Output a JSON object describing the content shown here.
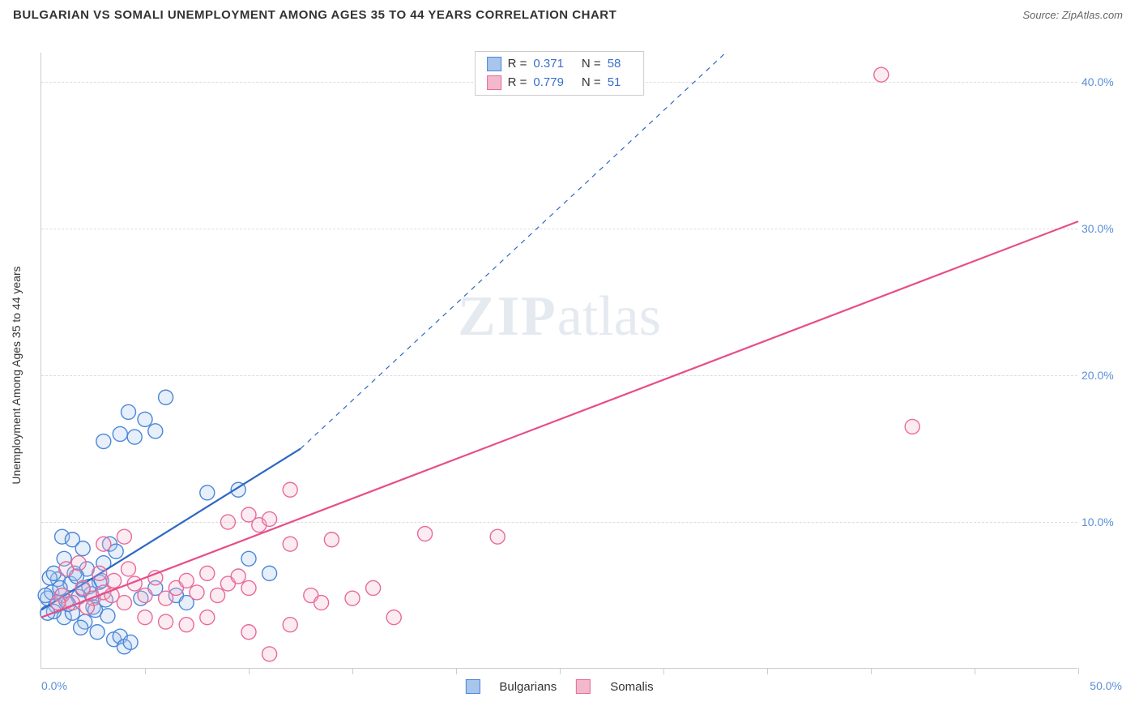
{
  "header": {
    "title": "BULGARIAN VS SOMALI UNEMPLOYMENT AMONG AGES 35 TO 44 YEARS CORRELATION CHART",
    "source": "Source: ZipAtlas.com"
  },
  "chart": {
    "type": "scatter",
    "y_axis_label": "Unemployment Among Ages 35 to 44 years",
    "watermark_prefix": "ZIP",
    "watermark_suffix": "atlas",
    "xlim": [
      0,
      50
    ],
    "ylim": [
      0,
      42
    ],
    "x_tick_labels": {
      "min": "0.0%",
      "max": "50.0%"
    },
    "y_ticks": [
      {
        "value": 10,
        "label": "10.0%"
      },
      {
        "value": 20,
        "label": "20.0%"
      },
      {
        "value": 30,
        "label": "30.0%"
      },
      {
        "value": 40,
        "label": "40.0%"
      }
    ],
    "x_tick_positions": [
      5,
      10,
      15,
      20,
      25,
      30,
      35,
      40,
      45,
      50
    ],
    "grid_color": "#dddddd",
    "background_color": "#ffffff",
    "marker_radius": 9,
    "marker_stroke_width": 1.4,
    "marker_fill_opacity": 0.28,
    "series": [
      {
        "name": "Bulgarians",
        "color_stroke": "#4a87d8",
        "color_fill": "#a8c5ec",
        "R_label": "R  =",
        "R_value": "0.371",
        "N_label": "N  =",
        "N_value": "58",
        "trend_line": {
          "x1": 0,
          "y1": 4.0,
          "x2": 12.5,
          "y2": 15.0,
          "solid": true,
          "color": "#2d68c4",
          "width": 2.2
        },
        "trend_ext": {
          "x1": 12.5,
          "y1": 15.0,
          "x2": 33,
          "y2": 42,
          "solid": false,
          "color": "#2d68c4",
          "width": 1.2
        },
        "points": [
          [
            0.3,
            4.8
          ],
          [
            0.5,
            5.2
          ],
          [
            0.7,
            4.3
          ],
          [
            0.8,
            6.1
          ],
          [
            1.0,
            5.0
          ],
          [
            1.1,
            3.5
          ],
          [
            1.2,
            4.6
          ],
          [
            1.4,
            5.8
          ],
          [
            1.5,
            3.8
          ],
          [
            1.6,
            6.5
          ],
          [
            1.8,
            4.9
          ],
          [
            2.0,
            5.4
          ],
          [
            2.1,
            3.2
          ],
          [
            2.2,
            6.8
          ],
          [
            2.4,
            5.1
          ],
          [
            2.5,
            4.2
          ],
          [
            2.7,
            2.5
          ],
          [
            2.8,
            5.9
          ],
          [
            3.0,
            7.2
          ],
          [
            3.1,
            4.7
          ],
          [
            0.4,
            6.2
          ],
          [
            0.6,
            3.9
          ],
          [
            0.9,
            5.5
          ],
          [
            1.3,
            4.4
          ],
          [
            1.7,
            6.3
          ],
          [
            1.9,
            2.8
          ],
          [
            2.3,
            5.6
          ],
          [
            2.6,
            4.0
          ],
          [
            2.9,
            6.0
          ],
          [
            3.2,
            3.6
          ],
          [
            3.5,
            2.0
          ],
          [
            3.8,
            2.2
          ],
          [
            4.0,
            1.5
          ],
          [
            4.3,
            1.8
          ],
          [
            3.3,
            8.5
          ],
          [
            3.6,
            8.0
          ],
          [
            1.0,
            9.0
          ],
          [
            1.5,
            8.8
          ],
          [
            2.0,
            8.2
          ],
          [
            3.0,
            15.5
          ],
          [
            3.8,
            16.0
          ],
          [
            4.2,
            17.5
          ],
          [
            5.0,
            17.0
          ],
          [
            5.5,
            16.2
          ],
          [
            6.0,
            18.5
          ],
          [
            4.5,
            15.8
          ],
          [
            8.0,
            12.0
          ],
          [
            9.5,
            12.2
          ],
          [
            10.0,
            7.5
          ],
          [
            11.0,
            6.5
          ],
          [
            5.5,
            5.5
          ],
          [
            6.5,
            5.0
          ],
          [
            7.0,
            4.5
          ],
          [
            4.8,
            4.8
          ],
          [
            0.2,
            5.0
          ],
          [
            0.3,
            3.8
          ],
          [
            0.6,
            6.5
          ],
          [
            1.1,
            7.5
          ]
        ]
      },
      {
        "name": "Somalis",
        "color_stroke": "#e86a9a",
        "color_fill": "#f4b8cd",
        "R_label": "R  =",
        "R_value": "0.779",
        "N_label": "N  =",
        "N_value": "51",
        "trend_line": {
          "x1": 0,
          "y1": 3.5,
          "x2": 50,
          "y2": 30.5,
          "solid": true,
          "color": "#e84d88",
          "width": 2.2
        },
        "trend_ext": null,
        "points": [
          [
            1.0,
            5.0
          ],
          [
            1.5,
            4.5
          ],
          [
            2.0,
            5.5
          ],
          [
            2.5,
            4.8
          ],
          [
            3.0,
            5.2
          ],
          [
            3.5,
            6.0
          ],
          [
            4.0,
            4.5
          ],
          [
            4.5,
            5.8
          ],
          [
            5.0,
            5.0
          ],
          [
            5.5,
            6.2
          ],
          [
            6.0,
            4.8
          ],
          [
            6.5,
            5.5
          ],
          [
            7.0,
            6.0
          ],
          [
            7.5,
            5.2
          ],
          [
            8.0,
            6.5
          ],
          [
            8.5,
            5.0
          ],
          [
            9.0,
            5.8
          ],
          [
            9.5,
            6.3
          ],
          [
            10.0,
            5.5
          ],
          [
            3.0,
            8.5
          ],
          [
            4.0,
            9.0
          ],
          [
            5.0,
            3.5
          ],
          [
            6.0,
            3.2
          ],
          [
            7.0,
            3.0
          ],
          [
            8.0,
            3.5
          ],
          [
            9.0,
            10.0
          ],
          [
            10.0,
            10.5
          ],
          [
            10.5,
            9.8
          ],
          [
            11.0,
            10.2
          ],
          [
            12.0,
            8.5
          ],
          [
            13.0,
            5.0
          ],
          [
            13.5,
            4.5
          ],
          [
            14.0,
            8.8
          ],
          [
            15.0,
            4.8
          ],
          [
            16.0,
            5.5
          ],
          [
            12.0,
            3.0
          ],
          [
            11.0,
            1.0
          ],
          [
            10.0,
            2.5
          ],
          [
            12.0,
            12.2
          ],
          [
            22.0,
            9.0
          ],
          [
            17.0,
            3.5
          ],
          [
            18.5,
            9.2
          ],
          [
            42.0,
            16.5
          ],
          [
            40.5,
            40.5
          ],
          [
            1.2,
            6.8
          ],
          [
            1.8,
            7.2
          ],
          [
            2.2,
            4.2
          ],
          [
            2.8,
            6.5
          ],
          [
            3.4,
            5.0
          ],
          [
            4.2,
            6.8
          ],
          [
            0.8,
            4.5
          ]
        ]
      }
    ]
  }
}
